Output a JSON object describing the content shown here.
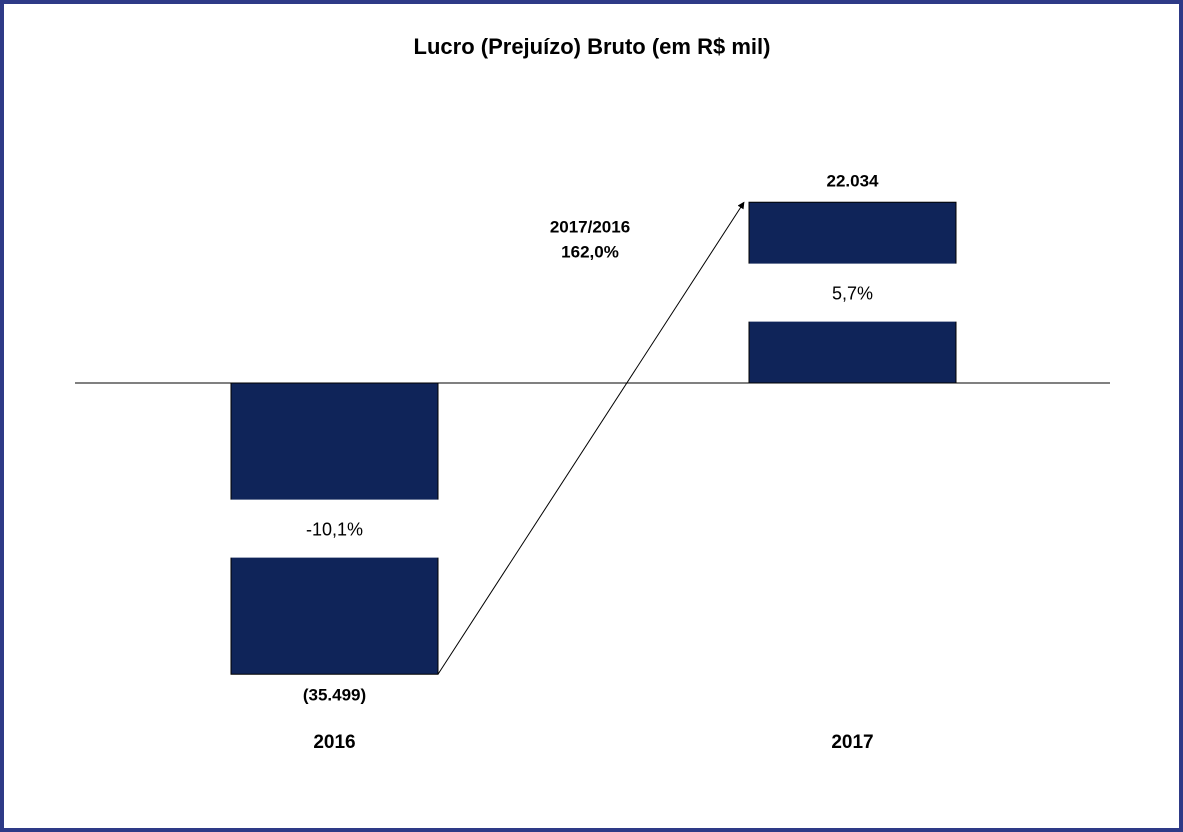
{
  "chart_data": {
    "type": "bar",
    "title": "Lucro (Prejuízo) Bruto (em R$ mil)",
    "categories": [
      "2016",
      "2017"
    ],
    "values": [
      -35499,
      22034
    ],
    "value_labels": [
      "(35.499)",
      "22.034"
    ],
    "margin_labels": [
      "-10,1%",
      "5,7%"
    ],
    "annotation": [
      "2017/2016",
      "162,0%"
    ],
    "color": "#0f2459"
  }
}
